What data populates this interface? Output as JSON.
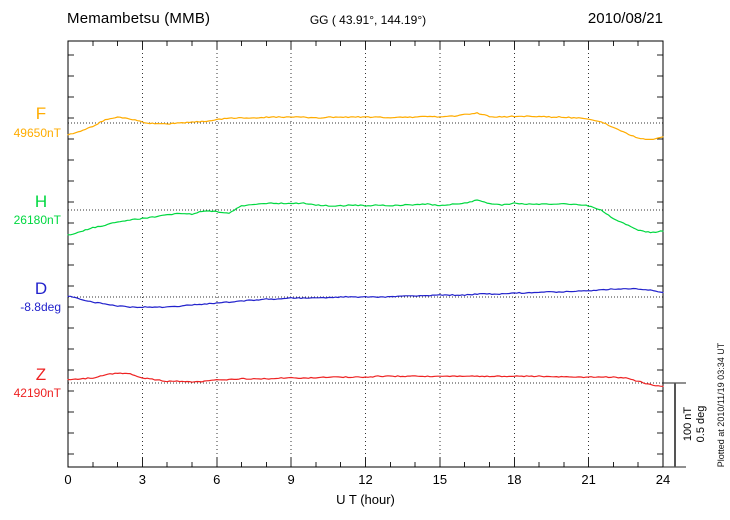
{
  "header": {
    "station_title": "Memambetsu (MMB)",
    "coordinates": "GG ( 43.91°, 144.19°)",
    "date": "2010/08/21"
  },
  "side_note": "Plotted at 2010/11/19 03:34 UT",
  "scale_bar": {
    "labels": [
      "100 nT",
      "0.5 deg"
    ]
  },
  "x_axis": {
    "label": "U T (hour)",
    "tick_labels": [
      "0",
      "3",
      "6",
      "9",
      "12",
      "15",
      "18",
      "21",
      "24"
    ]
  },
  "channels": [
    {
      "id": "F",
      "label": "F",
      "value_label": "49650nT",
      "color": "#FFAC00"
    },
    {
      "id": "H",
      "label": "H",
      "value_label": "26180nT",
      "color": "#00D840"
    },
    {
      "id": "D",
      "label": "D",
      "value_label": "-8.8deg",
      "color": "#2222CC"
    },
    {
      "id": "Z",
      "label": "Z",
      "value_label": "42190nT",
      "color": "#EE2222"
    }
  ],
  "chart_data": {
    "type": "line",
    "title": "Memambetsu (MMB) magnetogram",
    "xlabel": "U T (hour)",
    "x_range": [
      0,
      24
    ],
    "x_major_ticks": [
      0,
      3,
      6,
      9,
      12,
      15,
      18,
      21,
      24
    ],
    "grid": "dotted vertical lines every 3 h; dotted horizontal baseline per channel",
    "legend_position": "left",
    "sampling_interval_hours": 0.5,
    "y_scale_per_division": {
      "nT": 100,
      "deg": 0.5
    },
    "x": [
      0,
      0.5,
      1,
      1.5,
      2,
      2.5,
      3,
      3.5,
      4,
      4.5,
      5,
      5.5,
      6,
      6.5,
      7,
      7.5,
      8,
      8.5,
      9,
      9.5,
      10,
      10.5,
      11,
      11.5,
      12,
      12.5,
      13,
      13.5,
      14,
      14.5,
      15,
      15.5,
      16,
      16.5,
      17,
      17.5,
      18,
      18.5,
      19,
      19.5,
      20,
      20.5,
      21,
      21.5,
      22,
      22.5,
      23,
      23.5,
      24
    ],
    "series": [
      {
        "name": "F",
        "unit": "nT",
        "baseline": 49650,
        "color": "#FFAC00",
        "offsets": [
          -14,
          -10,
          -4,
          4,
          7,
          5,
          1,
          -1,
          -1,
          0,
          1,
          2,
          4,
          6,
          6,
          6,
          7,
          7,
          7,
          7,
          6,
          7,
          7,
          7,
          7,
          7,
          6,
          7,
          7,
          8,
          7,
          8,
          10,
          12,
          8,
          7,
          8,
          8,
          8,
          7,
          7,
          6,
          5,
          1,
          -5,
          -12,
          -18,
          -20,
          -17
        ]
      },
      {
        "name": "H",
        "unit": "nT",
        "baseline": 26180,
        "color": "#00D840",
        "offsets": [
          -30,
          -26,
          -21,
          -18,
          -14,
          -12,
          -10,
          -8,
          -6,
          -4,
          -5,
          -1,
          -2,
          -4,
          5,
          7,
          8,
          8,
          8,
          8,
          6,
          5,
          5,
          6,
          5,
          6,
          5,
          6,
          6,
          7,
          5,
          7,
          8,
          12,
          8,
          6,
          8,
          7,
          7,
          7,
          7,
          7,
          5,
          0,
          -10,
          -17,
          -24,
          -27,
          -25
        ]
      },
      {
        "name": "D",
        "unit": "deg",
        "baseline": -8.8,
        "color": "#2222CC",
        "offsets": [
          0.006,
          -0.012,
          -0.03,
          -0.042,
          -0.054,
          -0.06,
          -0.06,
          -0.06,
          -0.06,
          -0.054,
          -0.048,
          -0.042,
          -0.036,
          -0.03,
          -0.024,
          -0.018,
          -0.012,
          -0.012,
          -0.006,
          -0.006,
          -0.006,
          -0.006,
          0,
          0,
          0,
          0,
          0,
          0.006,
          0.006,
          0.006,
          0.012,
          0.012,
          0.012,
          0.018,
          0.018,
          0.018,
          0.024,
          0.024,
          0.03,
          0.03,
          0.03,
          0.036,
          0.036,
          0.042,
          0.048,
          0.048,
          0.048,
          0.042,
          0.024
        ]
      },
      {
        "name": "Z",
        "unit": "nT",
        "baseline": 42190,
        "color": "#EE2222",
        "offsets": [
          4,
          5,
          6,
          10,
          12,
          11,
          6,
          4,
          2,
          2,
          1,
          2,
          4,
          4,
          5,
          5,
          5,
          6,
          6,
          6,
          6,
          7,
          7,
          7,
          7,
          8,
          8,
          8,
          8,
          8,
          8,
          8,
          8,
          8,
          8,
          8,
          8,
          8,
          8,
          8,
          7,
          7,
          7,
          7,
          7,
          6,
          2,
          -2,
          -4
        ]
      }
    ]
  }
}
